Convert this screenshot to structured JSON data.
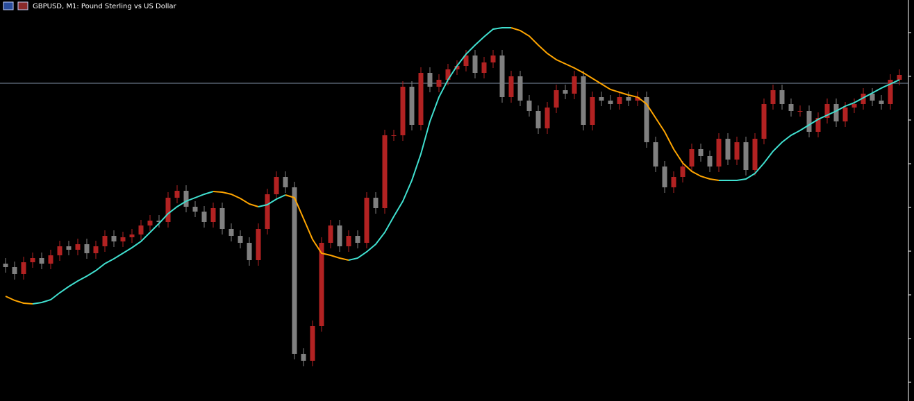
{
  "chart_data": {
    "type": "candlestick",
    "title": "GBPUSD, M1: Pound Sterling vs US Dollar",
    "ylim": [
      0,
      578
    ],
    "up_color": "#b22222",
    "down_color": "#808080",
    "price_line": 458,
    "price_line_color": "#7f8fa6",
    "open": [
      198,
      193,
      183,
      200,
      206,
      198,
      210,
      223,
      218,
      226,
      213,
      223,
      238,
      230,
      236,
      240,
      253,
      260,
      258,
      293,
      303,
      280,
      273,
      258,
      278,
      248,
      238,
      228,
      203,
      248,
      298,
      323,
      308,
      68,
      58,
      108,
      228,
      253,
      223,
      238,
      228,
      293,
      278,
      383,
      383,
      453,
      398,
      473,
      453,
      463,
      478,
      483,
      498,
      473,
      488,
      498,
      438,
      468,
      433,
      418,
      393,
      423,
      448,
      443,
      468,
      398,
      438,
      433,
      428,
      438,
      433,
      438,
      373,
      338,
      308,
      323,
      338,
      363,
      353,
      338,
      378,
      348,
      373,
      333,
      378,
      428,
      448,
      428,
      418,
      418,
      388,
      408,
      428,
      403,
      423,
      428,
      443,
      433,
      428,
      463
    ],
    "high": [
      206,
      201,
      208,
      214,
      214,
      218,
      231,
      231,
      234,
      234,
      231,
      246,
      246,
      244,
      248,
      261,
      268,
      268,
      301,
      311,
      311,
      288,
      281,
      286,
      286,
      256,
      246,
      236,
      256,
      306,
      331,
      331,
      316,
      76,
      116,
      236,
      261,
      261,
      246,
      246,
      301,
      301,
      391,
      391,
      461,
      461,
      481,
      481,
      471,
      486,
      491,
      506,
      506,
      496,
      506,
      506,
      476,
      476,
      441,
      426,
      431,
      456,
      456,
      476,
      476,
      446,
      446,
      441,
      446,
      446,
      446,
      446,
      381,
      346,
      331,
      346,
      371,
      371,
      361,
      386,
      386,
      381,
      381,
      386,
      436,
      456,
      456,
      436,
      426,
      426,
      416,
      436,
      436,
      431,
      436,
      451,
      451,
      441,
      471,
      478
    ],
    "low": [
      185,
      175,
      175,
      192,
      190,
      190,
      202,
      210,
      210,
      205,
      205,
      215,
      222,
      222,
      228,
      232,
      245,
      250,
      250,
      285,
      272,
      265,
      250,
      250,
      240,
      230,
      220,
      195,
      195,
      240,
      290,
      300,
      60,
      50,
      50,
      100,
      220,
      215,
      215,
      220,
      220,
      270,
      270,
      375,
      375,
      390,
      390,
      445,
      445,
      455,
      470,
      475,
      465,
      465,
      480,
      430,
      430,
      425,
      410,
      385,
      385,
      415,
      435,
      435,
      390,
      390,
      425,
      420,
      420,
      425,
      425,
      365,
      330,
      300,
      300,
      315,
      330,
      345,
      330,
      330,
      340,
      340,
      325,
      325,
      370,
      420,
      420,
      410,
      410,
      380,
      380,
      400,
      395,
      395,
      415,
      420,
      425,
      420,
      420,
      455
    ],
    "close": [
      193,
      183,
      200,
      206,
      198,
      210,
      223,
      218,
      226,
      213,
      223,
      238,
      230,
      236,
      240,
      253,
      260,
      258,
      293,
      303,
      280,
      273,
      258,
      278,
      248,
      238,
      228,
      203,
      248,
      298,
      323,
      308,
      68,
      58,
      108,
      228,
      253,
      223,
      238,
      228,
      293,
      278,
      383,
      383,
      453,
      398,
      473,
      453,
      463,
      478,
      483,
      498,
      473,
      488,
      498,
      438,
      468,
      433,
      418,
      393,
      423,
      448,
      443,
      468,
      398,
      438,
      433,
      428,
      438,
      433,
      438,
      373,
      338,
      308,
      323,
      338,
      363,
      353,
      338,
      378,
      348,
      373,
      333,
      378,
      428,
      448,
      428,
      418,
      418,
      388,
      408,
      428,
      403,
      423,
      428,
      443,
      433,
      428,
      463,
      470
    ],
    "ma": {
      "color_up": "#40e0d0",
      "color_down": "#ffa500",
      "values": [
        151,
        145,
        141,
        140,
        142,
        146,
        156,
        165,
        173,
        180,
        188,
        198,
        205,
        213,
        221,
        230,
        243,
        256,
        270,
        280,
        288,
        293,
        298,
        302,
        301,
        298,
        292,
        284,
        280,
        283,
        291,
        297,
        293,
        263,
        233,
        213,
        210,
        206,
        203,
        206,
        215,
        226,
        243,
        266,
        288,
        318,
        356,
        403,
        438,
        463,
        483,
        500,
        513,
        525,
        536,
        538,
        538,
        534,
        526,
        513,
        501,
        492,
        486,
        480,
        473,
        465,
        457,
        449,
        445,
        441,
        438,
        428,
        408,
        388,
        363,
        343,
        331,
        324,
        320,
        318,
        318,
        318,
        320,
        328,
        343,
        360,
        373,
        383,
        390,
        398,
        406,
        412,
        418,
        425,
        430,
        437,
        444,
        451,
        457,
        463
      ]
    }
  }
}
